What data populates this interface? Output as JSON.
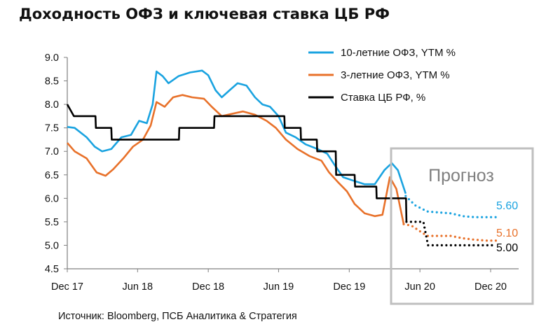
{
  "title": "Доходность ОФЗ и ключевая ставка ЦБ РФ",
  "source": "Источник: Bloomberg, ПСБ Аналитика & Стратегия",
  "chart_data": {
    "type": "line",
    "title": "Доходность ОФЗ и ключевая ставка ЦБ РФ",
    "xlabel": "",
    "ylabel": "",
    "ylim": [
      4.5,
      9.0
    ],
    "yticks": [
      "9.0",
      "8.5",
      "8.0",
      "7.5",
      "7.0",
      "6.5",
      "6.0",
      "5.5",
      "5.0",
      "4.5"
    ],
    "xticks": [
      "Dec 17",
      "Jun 18",
      "Dec 18",
      "Jun 19",
      "Dec 19",
      "Jun 20",
      "Dec 20"
    ],
    "grid": false,
    "legend_position": "top-right",
    "forecast_label": "Прогноз",
    "series": [
      {
        "name": "10-летние ОФЗ, YTM %",
        "color": "#1aa3e0",
        "style": "solid",
        "points": [
          [
            "2017-12-01",
            7.52
          ],
          [
            "2017-12-20",
            7.5
          ],
          [
            "2018-01-20",
            7.3
          ],
          [
            "2018-02-10",
            7.1
          ],
          [
            "2018-03-01",
            7.0
          ],
          [
            "2018-03-25",
            7.05
          ],
          [
            "2018-04-20",
            7.3
          ],
          [
            "2018-05-15",
            7.35
          ],
          [
            "2018-06-05",
            7.65
          ],
          [
            "2018-06-25",
            7.6
          ],
          [
            "2018-07-10",
            8.0
          ],
          [
            "2018-07-20",
            8.7
          ],
          [
            "2018-08-05",
            8.6
          ],
          [
            "2018-08-20",
            8.45
          ],
          [
            "2018-09-15",
            8.6
          ],
          [
            "2018-10-15",
            8.68
          ],
          [
            "2018-11-15",
            8.72
          ],
          [
            "2018-12-01",
            8.62
          ],
          [
            "2018-12-20",
            8.3
          ],
          [
            "2019-01-05",
            8.15
          ],
          [
            "2019-01-25",
            8.3
          ],
          [
            "2019-02-15",
            8.45
          ],
          [
            "2019-03-10",
            8.4
          ],
          [
            "2019-04-01",
            8.15
          ],
          [
            "2019-04-20",
            8.0
          ],
          [
            "2019-05-10",
            7.95
          ],
          [
            "2019-06-01",
            7.75
          ],
          [
            "2019-06-20",
            7.4
          ],
          [
            "2019-07-15",
            7.3
          ],
          [
            "2019-08-10",
            7.15
          ],
          [
            "2019-09-10",
            7.05
          ],
          [
            "2019-10-05",
            6.95
          ],
          [
            "2019-10-25",
            6.7
          ],
          [
            "2019-11-15",
            6.45
          ],
          [
            "2019-12-10",
            6.38
          ],
          [
            "2020-01-10",
            6.3
          ],
          [
            "2020-02-05",
            6.3
          ],
          [
            "2020-03-01",
            6.6
          ],
          [
            "2020-03-20",
            6.75
          ],
          [
            "2020-04-05",
            6.6
          ],
          [
            "2020-04-25",
            6.1
          ]
        ]
      },
      {
        "name": "10-летние ОФЗ, YTM %",
        "color": "#1aa3e0",
        "style": "dotted",
        "end_label": "5.60",
        "points": [
          [
            "2020-04-25",
            6.05
          ],
          [
            "2020-05-20",
            5.85
          ],
          [
            "2020-06-20",
            5.72
          ],
          [
            "2020-07-20",
            5.7
          ],
          [
            "2020-08-20",
            5.68
          ],
          [
            "2020-09-20",
            5.62
          ],
          [
            "2020-10-20",
            5.6
          ],
          [
            "2020-11-20",
            5.6
          ],
          [
            "2020-12-15",
            5.6
          ]
        ]
      },
      {
        "name": "3-летние ОФЗ, YTM %",
        "color": "#e8712a",
        "style": "solid",
        "points": [
          [
            "2017-12-01",
            7.18
          ],
          [
            "2017-12-20",
            7.0
          ],
          [
            "2018-01-20",
            6.85
          ],
          [
            "2018-02-15",
            6.55
          ],
          [
            "2018-03-10",
            6.48
          ],
          [
            "2018-03-30",
            6.62
          ],
          [
            "2018-04-25",
            6.85
          ],
          [
            "2018-05-20",
            7.1
          ],
          [
            "2018-06-15",
            7.25
          ],
          [
            "2018-07-05",
            7.55
          ],
          [
            "2018-07-20",
            8.05
          ],
          [
            "2018-08-10",
            7.95
          ],
          [
            "2018-09-01",
            8.15
          ],
          [
            "2018-09-25",
            8.2
          ],
          [
            "2018-10-20",
            8.15
          ],
          [
            "2018-11-20",
            8.12
          ],
          [
            "2018-12-10",
            7.95
          ],
          [
            "2019-01-05",
            7.75
          ],
          [
            "2019-02-01",
            7.8
          ],
          [
            "2019-03-01",
            7.85
          ],
          [
            "2019-04-01",
            7.78
          ],
          [
            "2019-05-01",
            7.65
          ],
          [
            "2019-05-25",
            7.5
          ],
          [
            "2019-06-20",
            7.25
          ],
          [
            "2019-07-20",
            7.05
          ],
          [
            "2019-08-20",
            6.9
          ],
          [
            "2019-09-20",
            6.8
          ],
          [
            "2019-10-10",
            6.55
          ],
          [
            "2019-11-01",
            6.35
          ],
          [
            "2019-11-25",
            6.15
          ],
          [
            "2019-12-15",
            5.88
          ],
          [
            "2020-01-10",
            5.68
          ],
          [
            "2020-02-05",
            5.62
          ],
          [
            "2020-02-25",
            5.65
          ],
          [
            "2020-03-15",
            6.45
          ],
          [
            "2020-04-01",
            6.2
          ],
          [
            "2020-04-20",
            5.45
          ]
        ]
      },
      {
        "name": "3-летние ОФЗ, YTM %",
        "color": "#e8712a",
        "style": "dotted",
        "end_label": "5.10",
        "points": [
          [
            "2020-04-20",
            5.45
          ],
          [
            "2020-05-10",
            5.42
          ],
          [
            "2020-06-01",
            5.3
          ],
          [
            "2020-06-20",
            5.2
          ],
          [
            "2020-07-20",
            5.2
          ],
          [
            "2020-08-20",
            5.2
          ],
          [
            "2020-09-20",
            5.15
          ],
          [
            "2020-10-20",
            5.12
          ],
          [
            "2020-11-20",
            5.1
          ],
          [
            "2020-12-15",
            5.1
          ]
        ]
      },
      {
        "name": "Ставка ЦБ РФ, %",
        "color": "#000000",
        "style": "solid",
        "points": [
          [
            "2017-12-01",
            8.0
          ],
          [
            "2017-12-18",
            7.75
          ],
          [
            "2018-02-12",
            7.75
          ],
          [
            "2018-02-13",
            7.5
          ],
          [
            "2018-03-25",
            7.5
          ],
          [
            "2018-03-26",
            7.25
          ],
          [
            "2018-09-16",
            7.25
          ],
          [
            "2018-09-17",
            7.5
          ],
          [
            "2018-12-16",
            7.5
          ],
          [
            "2018-12-17",
            7.75
          ],
          [
            "2019-06-16",
            7.75
          ],
          [
            "2019-06-17",
            7.5
          ],
          [
            "2019-07-28",
            7.5
          ],
          [
            "2019-07-29",
            7.25
          ],
          [
            "2019-09-08",
            7.25
          ],
          [
            "2019-09-09",
            7.0
          ],
          [
            "2019-10-27",
            7.0
          ],
          [
            "2019-10-28",
            6.5
          ],
          [
            "2019-12-15",
            6.5
          ],
          [
            "2019-12-16",
            6.25
          ],
          [
            "2020-02-09",
            6.25
          ],
          [
            "2020-02-10",
            6.0
          ],
          [
            "2020-04-26",
            6.0
          ],
          [
            "2020-04-27",
            5.5
          ]
        ]
      },
      {
        "name": "Ставка ЦБ РФ, %",
        "color": "#000000",
        "style": "dotted",
        "end_label": "5.00",
        "points": [
          [
            "2020-04-27",
            5.5
          ],
          [
            "2020-05-20",
            5.5
          ],
          [
            "2020-06-10",
            5.5
          ],
          [
            "2020-06-22",
            5.0
          ],
          [
            "2020-12-15",
            5.0
          ]
        ]
      }
    ]
  },
  "legend": [
    {
      "label": "10-летние ОФЗ, YTM %",
      "color": "#1aa3e0"
    },
    {
      "label": "3-летние ОФЗ, YTM %",
      "color": "#e8712a"
    },
    {
      "label": "Ставка ЦБ РФ, %",
      "color": "#000000"
    }
  ]
}
